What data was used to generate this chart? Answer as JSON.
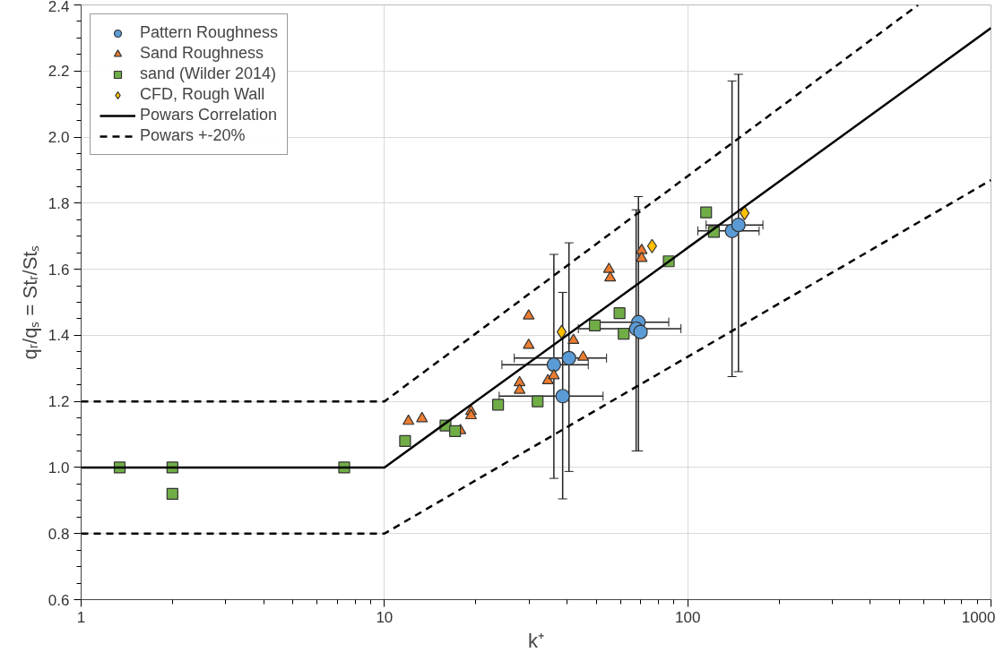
{
  "chart_data": {
    "type": "scatter",
    "xlabel": "k⁺",
    "ylabel": "qᵣ/qₛ = Stᵣ/Stₛ",
    "log": "x",
    "grid": true,
    "legend": "top left",
    "xlim": [
      1,
      1000
    ],
    "xticks": [
      1,
      10,
      100,
      1000
    ],
    "ylim": [
      0.6,
      2.4
    ],
    "yticks": [
      0.6,
      0.8,
      {
        "value": 1,
        "label": "1.0"
      },
      1.2,
      1.4,
      1.6,
      1.8,
      {
        "value": 2,
        "label": "2.0"
      },
      2.2,
      2.4
    ],
    "series": [
      {
        "name": "Pattern Roughness",
        "marker": "circle",
        "color": "#5b9bd5",
        "x": [
          36.2,
          40.6,
          38.7,
          68.8,
          67.6,
          69.9,
          140,
          147
        ],
        "values": [
          1.311,
          1.331,
          1.216,
          1.44,
          1.42,
          1.41,
          1.716,
          1.734
        ],
        "errors": [
          [
            0.967,
            1.645
          ],
          [
            0.988,
            1.68
          ],
          [
            0.905,
            1.53
          ],
          [
            1.05,
            1.82
          ],
          [
            1.05,
            1.78
          ],
          null,
          [
            1.275,
            2.17
          ],
          [
            1.29,
            2.19
          ]
        ],
        "xerrors": [
          [
            24.4,
            47
          ],
          [
            26.8,
            54
          ],
          [
            23.9,
            52.6
          ],
          [
            47.8,
            86.6
          ],
          [
            43.6,
            95
          ],
          null,
          [
            108,
            172
          ],
          [
            115,
            177
          ]
        ]
      },
      {
        "name": "Sand Roughness",
        "marker": "triangle",
        "color": "#ed7d31",
        "x": [
          12,
          13.3,
          19.3,
          19.3,
          17.8,
          29.9,
          29.9,
          27.9,
          27.9,
          34.6,
          36.2,
          42,
          45.2,
          55,
          55.5,
          70.5,
          70.5
        ],
        "values": [
          1.14,
          1.148,
          1.17,
          1.157,
          1.112,
          1.459,
          1.37,
          1.257,
          1.234,
          1.263,
          1.278,
          1.385,
          1.334,
          1.6,
          1.574,
          1.657,
          1.633
        ]
      },
      {
        "name": "sand (Wilder 2014)",
        "marker": "square",
        "color": "#70ad47",
        "x": [
          1.34,
          2,
          2,
          7.37,
          11.7,
          15.9,
          17.1,
          23.7,
          32,
          49.4,
          61.5,
          59.6,
          86.6,
          115,
          122
        ],
        "values": [
          1.0,
          1.0,
          0.92,
          1.0,
          1.08,
          1.127,
          1.11,
          1.19,
          1.2,
          1.43,
          1.405,
          1.467,
          1.624,
          1.772,
          1.713
        ]
      },
      {
        "name": "CFD, Rough Wall",
        "marker": "diamond",
        "color": "#ffc000",
        "x": [
          38.4,
          76.3,
          154
        ],
        "values": [
          1.41,
          1.67,
          1.77
        ]
      },
      {
        "name": "Powars Correlation",
        "type": "line",
        "line_style": "solid",
        "color": "#000000",
        "x": [
          1,
          10,
          1000
        ],
        "values": [
          1.0,
          1.0,
          2.33
        ]
      },
      {
        "name": "Powars +-20%",
        "type": "line",
        "line_style": "dashed",
        "color": "#000000",
        "x": [
          1,
          10,
          575
        ],
        "values": [
          1.2,
          1.2,
          2.4
        ]
      },
      {
        "type": "line",
        "line_style": "dashed",
        "color": "#000000",
        "x": [
          1,
          10,
          1000
        ],
        "values": [
          0.8,
          0.8,
          1.87
        ]
      }
    ]
  }
}
